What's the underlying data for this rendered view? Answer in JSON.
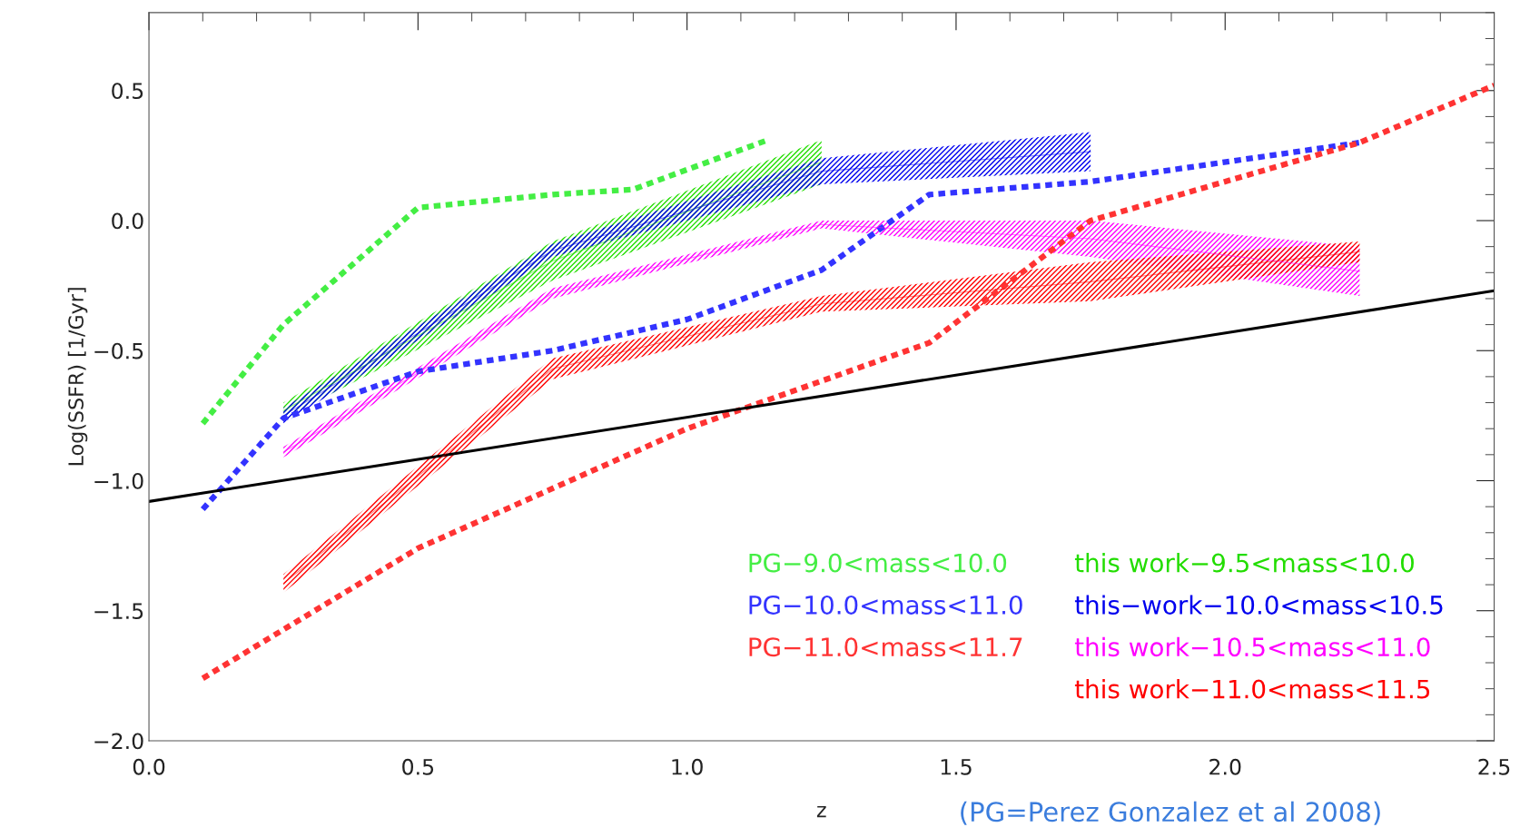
{
  "chart_data": {
    "type": "line",
    "xlabel": "z",
    "ylabel": "Log(SSFR) [1/Gyr]",
    "xlim": [
      0,
      2.5
    ],
    "ylim": [
      -2.0,
      0.8
    ],
    "xticks": [
      {
        "value": 0,
        "label": "0.0"
      },
      0.5,
      {
        "value": 1,
        "label": "1.0"
      },
      1.5,
      {
        "value": 2,
        "label": "2.0"
      },
      2.5
    ],
    "yticks": [
      {
        "value": -2,
        "label": "−2.0"
      },
      {
        "value": -1.5,
        "label": "−1.5"
      },
      {
        "value": -1,
        "label": "−1.0"
      },
      {
        "value": -0.5,
        "label": "−0.5"
      },
      {
        "value": 0,
        "label": "0.0"
      },
      0.5
    ],
    "grid": false,
    "legend": "bottom right",
    "annotations": [
      "(PG=Perez Gonzalez et al 2008)"
    ],
    "series": [
      {
        "name": "PG−9.0<mass<10.0",
        "color": "#44ee44",
        "line_style": "dashed",
        "x": [
          0.1,
          0.25,
          0.5,
          0.75,
          0.9,
          1.15
        ],
        "values": [
          -0.78,
          -0.4,
          0.05,
          0.1,
          0.12,
          0.31
        ]
      },
      {
        "name": "PG−10.0<mass<11.0",
        "color": "#3333ff",
        "line_style": "dashed",
        "x": [
          0.1,
          0.25,
          0.5,
          0.75,
          1.0,
          1.25,
          1.45,
          1.75,
          2.25
        ],
        "values": [
          -1.11,
          -0.76,
          -0.58,
          -0.5,
          -0.38,
          -0.19,
          0.1,
          0.15,
          0.3
        ]
      },
      {
        "name": "PG−11.0<mass<11.7",
        "color": "#ff3333",
        "line_style": "dashed",
        "x": [
          0.1,
          0.5,
          1.0,
          1.45,
          1.75,
          2.25,
          2.5
        ],
        "values": [
          -1.76,
          -1.26,
          -0.8,
          -0.47,
          0.0,
          0.3,
          0.52
        ]
      },
      {
        "color": "#000000",
        "line_style": "solid",
        "x": [
          0,
          2.5
        ],
        "values": [
          -1.08,
          -0.27
        ]
      },
      {
        "name": "this work−9.5<mass<10.0",
        "color": "#22dd00",
        "line_style": "solid",
        "x": [
          0.25,
          0.75,
          1.25
        ],
        "values": [
          -0.73,
          -0.155,
          0.225
        ],
        "lower": [
          -0.76,
          -0.23,
          0.14
        ],
        "upper": [
          -0.7,
          -0.08,
          0.31
        ]
      },
      {
        "name": "this−work−10.0<mass<10.5",
        "color": "#0000ee",
        "line_style": "solid",
        "x": [
          0.25,
          0.75,
          1.25,
          1.75
        ],
        "values": [
          -0.75,
          -0.115,
          0.19,
          0.265
        ],
        "lower": [
          -0.78,
          -0.14,
          0.14,
          0.19
        ],
        "upper": [
          -0.72,
          -0.09,
          0.24,
          0.34
        ]
      },
      {
        "name": "this work−10.5<mass<11.0",
        "color": "#ff00ff",
        "line_style": "solid",
        "x": [
          0.25,
          0.75,
          1.25,
          1.75,
          2.25
        ],
        "values": [
          -0.89,
          -0.28,
          -0.015,
          -0.07,
          -0.195
        ],
        "lower": [
          -0.91,
          -0.3,
          -0.03,
          -0.14,
          -0.29
        ],
        "upper": [
          -0.87,
          -0.26,
          0.0,
          0.0,
          -0.1
        ]
      },
      {
        "name": "this work−11.0<mass<11.5",
        "color": "#ff0000",
        "line_style": "solid",
        "x": [
          0.25,
          0.75,
          1.25,
          1.75,
          2.25
        ],
        "values": [
          -1.395,
          -0.57,
          -0.32,
          -0.235,
          -0.12
        ],
        "lower": [
          -1.43,
          -0.61,
          -0.35,
          -0.31,
          -0.16
        ],
        "upper": [
          -1.36,
          -0.53,
          -0.29,
          -0.16,
          -0.08
        ]
      }
    ]
  }
}
